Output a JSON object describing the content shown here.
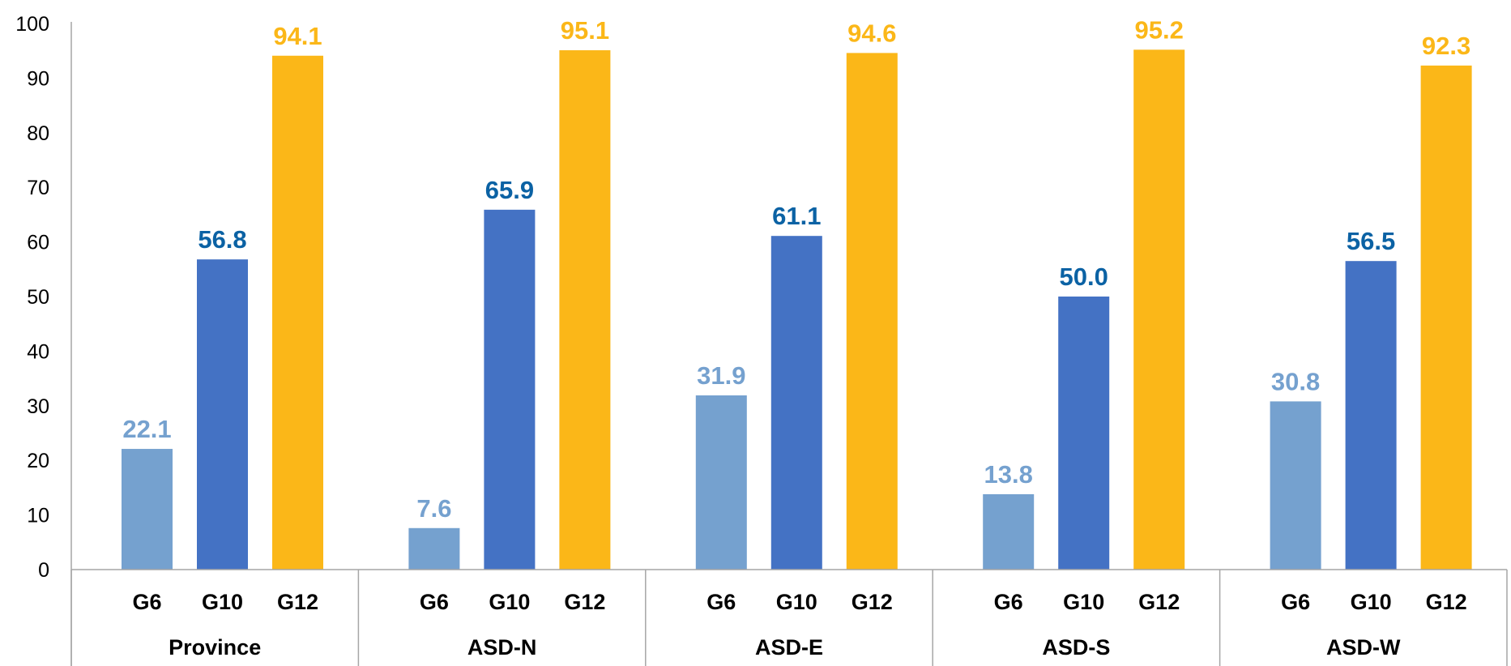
{
  "chart_data": {
    "type": "bar",
    "groups": [
      "Province",
      "ASD-N",
      "ASD-E",
      "ASD-S",
      "ASD-W"
    ],
    "series": [
      {
        "name": "G6",
        "color": "#75A1CF",
        "label_color": "#75A1CF",
        "values": [
          22.1,
          7.6,
          31.9,
          13.8,
          30.8
        ]
      },
      {
        "name": "G10",
        "color": "#4472C4",
        "label_color": "#0B62A4",
        "values": [
          56.8,
          65.9,
          61.1,
          50.0,
          56.5
        ]
      },
      {
        "name": "G12",
        "color": "#FBB718",
        "label_color": "#FBB718",
        "values": [
          94.1,
          95.1,
          94.6,
          95.2,
          92.3
        ]
      }
    ],
    "data_labels": [
      [
        "22.1",
        "56.8",
        "94.1"
      ],
      [
        "7.6",
        "65.9",
        "95.1"
      ],
      [
        "31.9",
        "61.1",
        "94.6"
      ],
      [
        "13.8",
        "50.0",
        "95.2"
      ],
      [
        "30.8",
        "56.5",
        "92.3"
      ]
    ],
    "ylim": [
      0,
      100
    ],
    "yticks": [
      "0",
      "10",
      "20",
      "30",
      "40",
      "50",
      "60",
      "70",
      "80",
      "90",
      "100"
    ],
    "grid": false,
    "legend": "none"
  }
}
